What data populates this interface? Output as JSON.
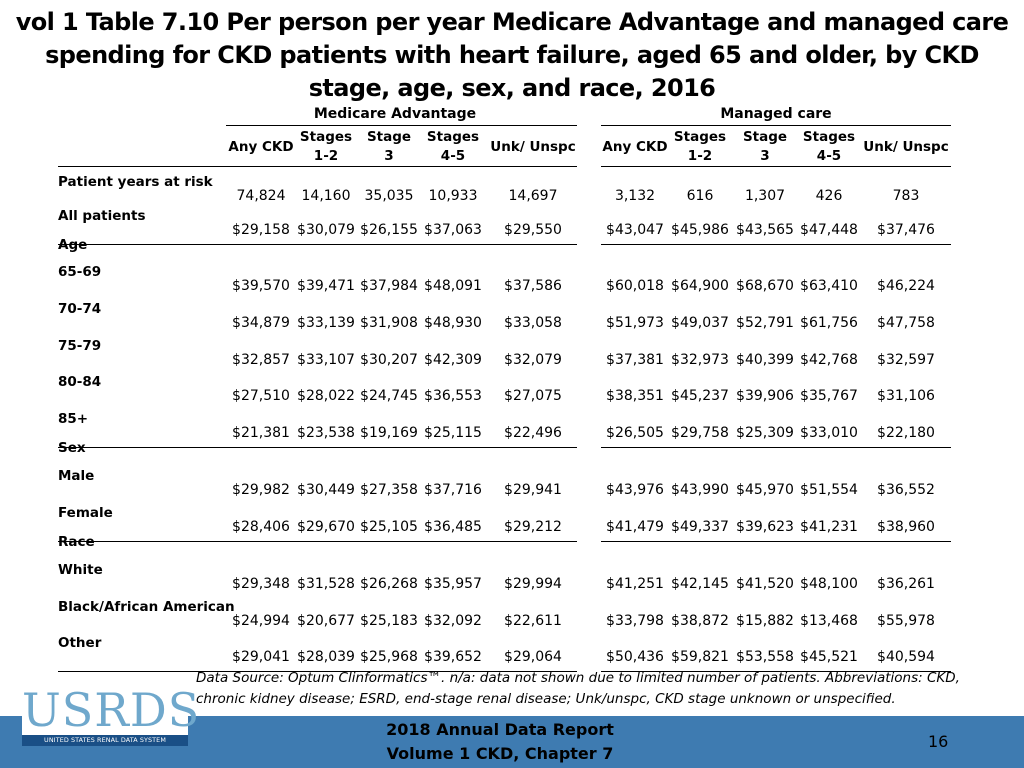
{
  "title": "vol 1 Table 7.10 Per person per year Medicare Advantage and managed care spending for CKD patients with heart failure, aged 65 and older, by CKD stage, age, sex, and race, 2016",
  "group_headers": [
    "Medicare Advantage",
    "Managed care"
  ],
  "column_headers": [
    [
      "Any CKD"
    ],
    [
      "Stages",
      "1-2"
    ],
    [
      "Stage",
      "3"
    ],
    [
      "Stages",
      "4-5"
    ],
    [
      "Unk/ Unspc"
    ],
    [
      "Any CKD"
    ],
    [
      "Stages",
      "1-2"
    ],
    [
      "Stage",
      "3"
    ],
    [
      "Stages",
      "4-5"
    ],
    [
      "Unk/ Unspc"
    ]
  ],
  "rows": [
    {
      "type": "data",
      "label": "Patient years at risk",
      "values": [
        "74,824",
        "14,160",
        "35,035",
        "10,933",
        "14,697",
        "3,132",
        "616",
        "1,307",
        "426",
        "783"
      ]
    },
    {
      "type": "data",
      "label": "All patients",
      "values": [
        "$29,158",
        "$30,079",
        "$26,155",
        "$37,063",
        "$29,550",
        "$43,047",
        "$45,986",
        "$43,565",
        "$47,448",
        "$37,476"
      ]
    },
    {
      "type": "section",
      "label": "Age"
    },
    {
      "type": "data",
      "label": "65-69",
      "values": [
        "$39,570",
        "$39,471",
        "$37,984",
        "$48,091",
        "$37,586",
        "$60,018",
        "$64,900",
        "$68,670",
        "$63,410",
        "$46,224"
      ]
    },
    {
      "type": "data",
      "label": "70-74",
      "values": [
        "$34,879",
        "$33,139",
        "$31,908",
        "$48,930",
        "$33,058",
        "$51,973",
        "$49,037",
        "$52,791",
        "$61,756",
        "$47,758"
      ]
    },
    {
      "type": "data",
      "label": "75-79",
      "values": [
        "$32,857",
        "$33,107",
        "$30,207",
        "$42,309",
        "$32,079",
        "$37,381",
        "$32,973",
        "$40,399",
        "$42,768",
        "$32,597"
      ]
    },
    {
      "type": "data",
      "label": "80-84",
      "values": [
        "$27,510",
        "$28,022",
        "$24,745",
        "$36,553",
        "$27,075",
        "$38,351",
        "$45,237",
        "$39,906",
        "$35,767",
        "$31,106"
      ]
    },
    {
      "type": "data",
      "label": "85+",
      "values": [
        "$21,381",
        "$23,538",
        "$19,169",
        "$25,115",
        "$22,496",
        "$26,505",
        "$29,758",
        "$25,309",
        "$33,010",
        "$22,180"
      ]
    },
    {
      "type": "section",
      "label": "Sex"
    },
    {
      "type": "data",
      "label": "Male",
      "values": [
        "$29,982",
        "$30,449",
        "$27,358",
        "$37,716",
        "$29,941",
        "$43,976",
        "$43,990",
        "$45,970",
        "$51,554",
        "$36,552"
      ]
    },
    {
      "type": "data",
      "label": "Female",
      "values": [
        "$28,406",
        "$29,670",
        "$25,105",
        "$36,485",
        "$29,212",
        "$41,479",
        "$49,337",
        "$39,623",
        "$41,231",
        "$38,960"
      ]
    },
    {
      "type": "section",
      "label": "Race"
    },
    {
      "type": "data",
      "label": "White",
      "values": [
        "$29,348",
        "$31,528",
        "$26,268",
        "$35,957",
        "$29,994",
        "$41,251",
        "$42,145",
        "$41,520",
        "$48,100",
        "$36,261"
      ]
    },
    {
      "type": "data",
      "label": "Black/African American",
      "values": [
        "$24,994",
        "$20,677",
        "$25,183",
        "$32,092",
        "$22,611",
        "$33,798",
        "$38,872",
        "$15,882",
        "$13,468",
        "$55,978"
      ]
    },
    {
      "type": "data",
      "label": "Other",
      "values": [
        "$29,041",
        "$28,039",
        "$25,968",
        "$39,652",
        "$29,064",
        "$50,436",
        "$59,821",
        "$53,558",
        "$45,521",
        "$40,594"
      ]
    }
  ],
  "source_note": "Data Source: Optum Clinformatics™. n/a: data not shown due to limited number of patients. Abbreviations: CKD, chronic kidney disease; ESRD, end-stage renal disease; Unk/unspc, CKD stage unknown or unspecified.",
  "logo": {
    "text": "USRDS",
    "subtitle": "UNITED STATES RENAL DATA SYSTEM"
  },
  "footer": {
    "line1": "2018 Annual Data Report",
    "line2": "Volume 1 CKD, Chapter 7",
    "page_number": "16"
  },
  "colors": {
    "footer_bar": "#3e7bb1",
    "logo_text": "#6fa8cc",
    "logo_band": "#1a4f86"
  }
}
